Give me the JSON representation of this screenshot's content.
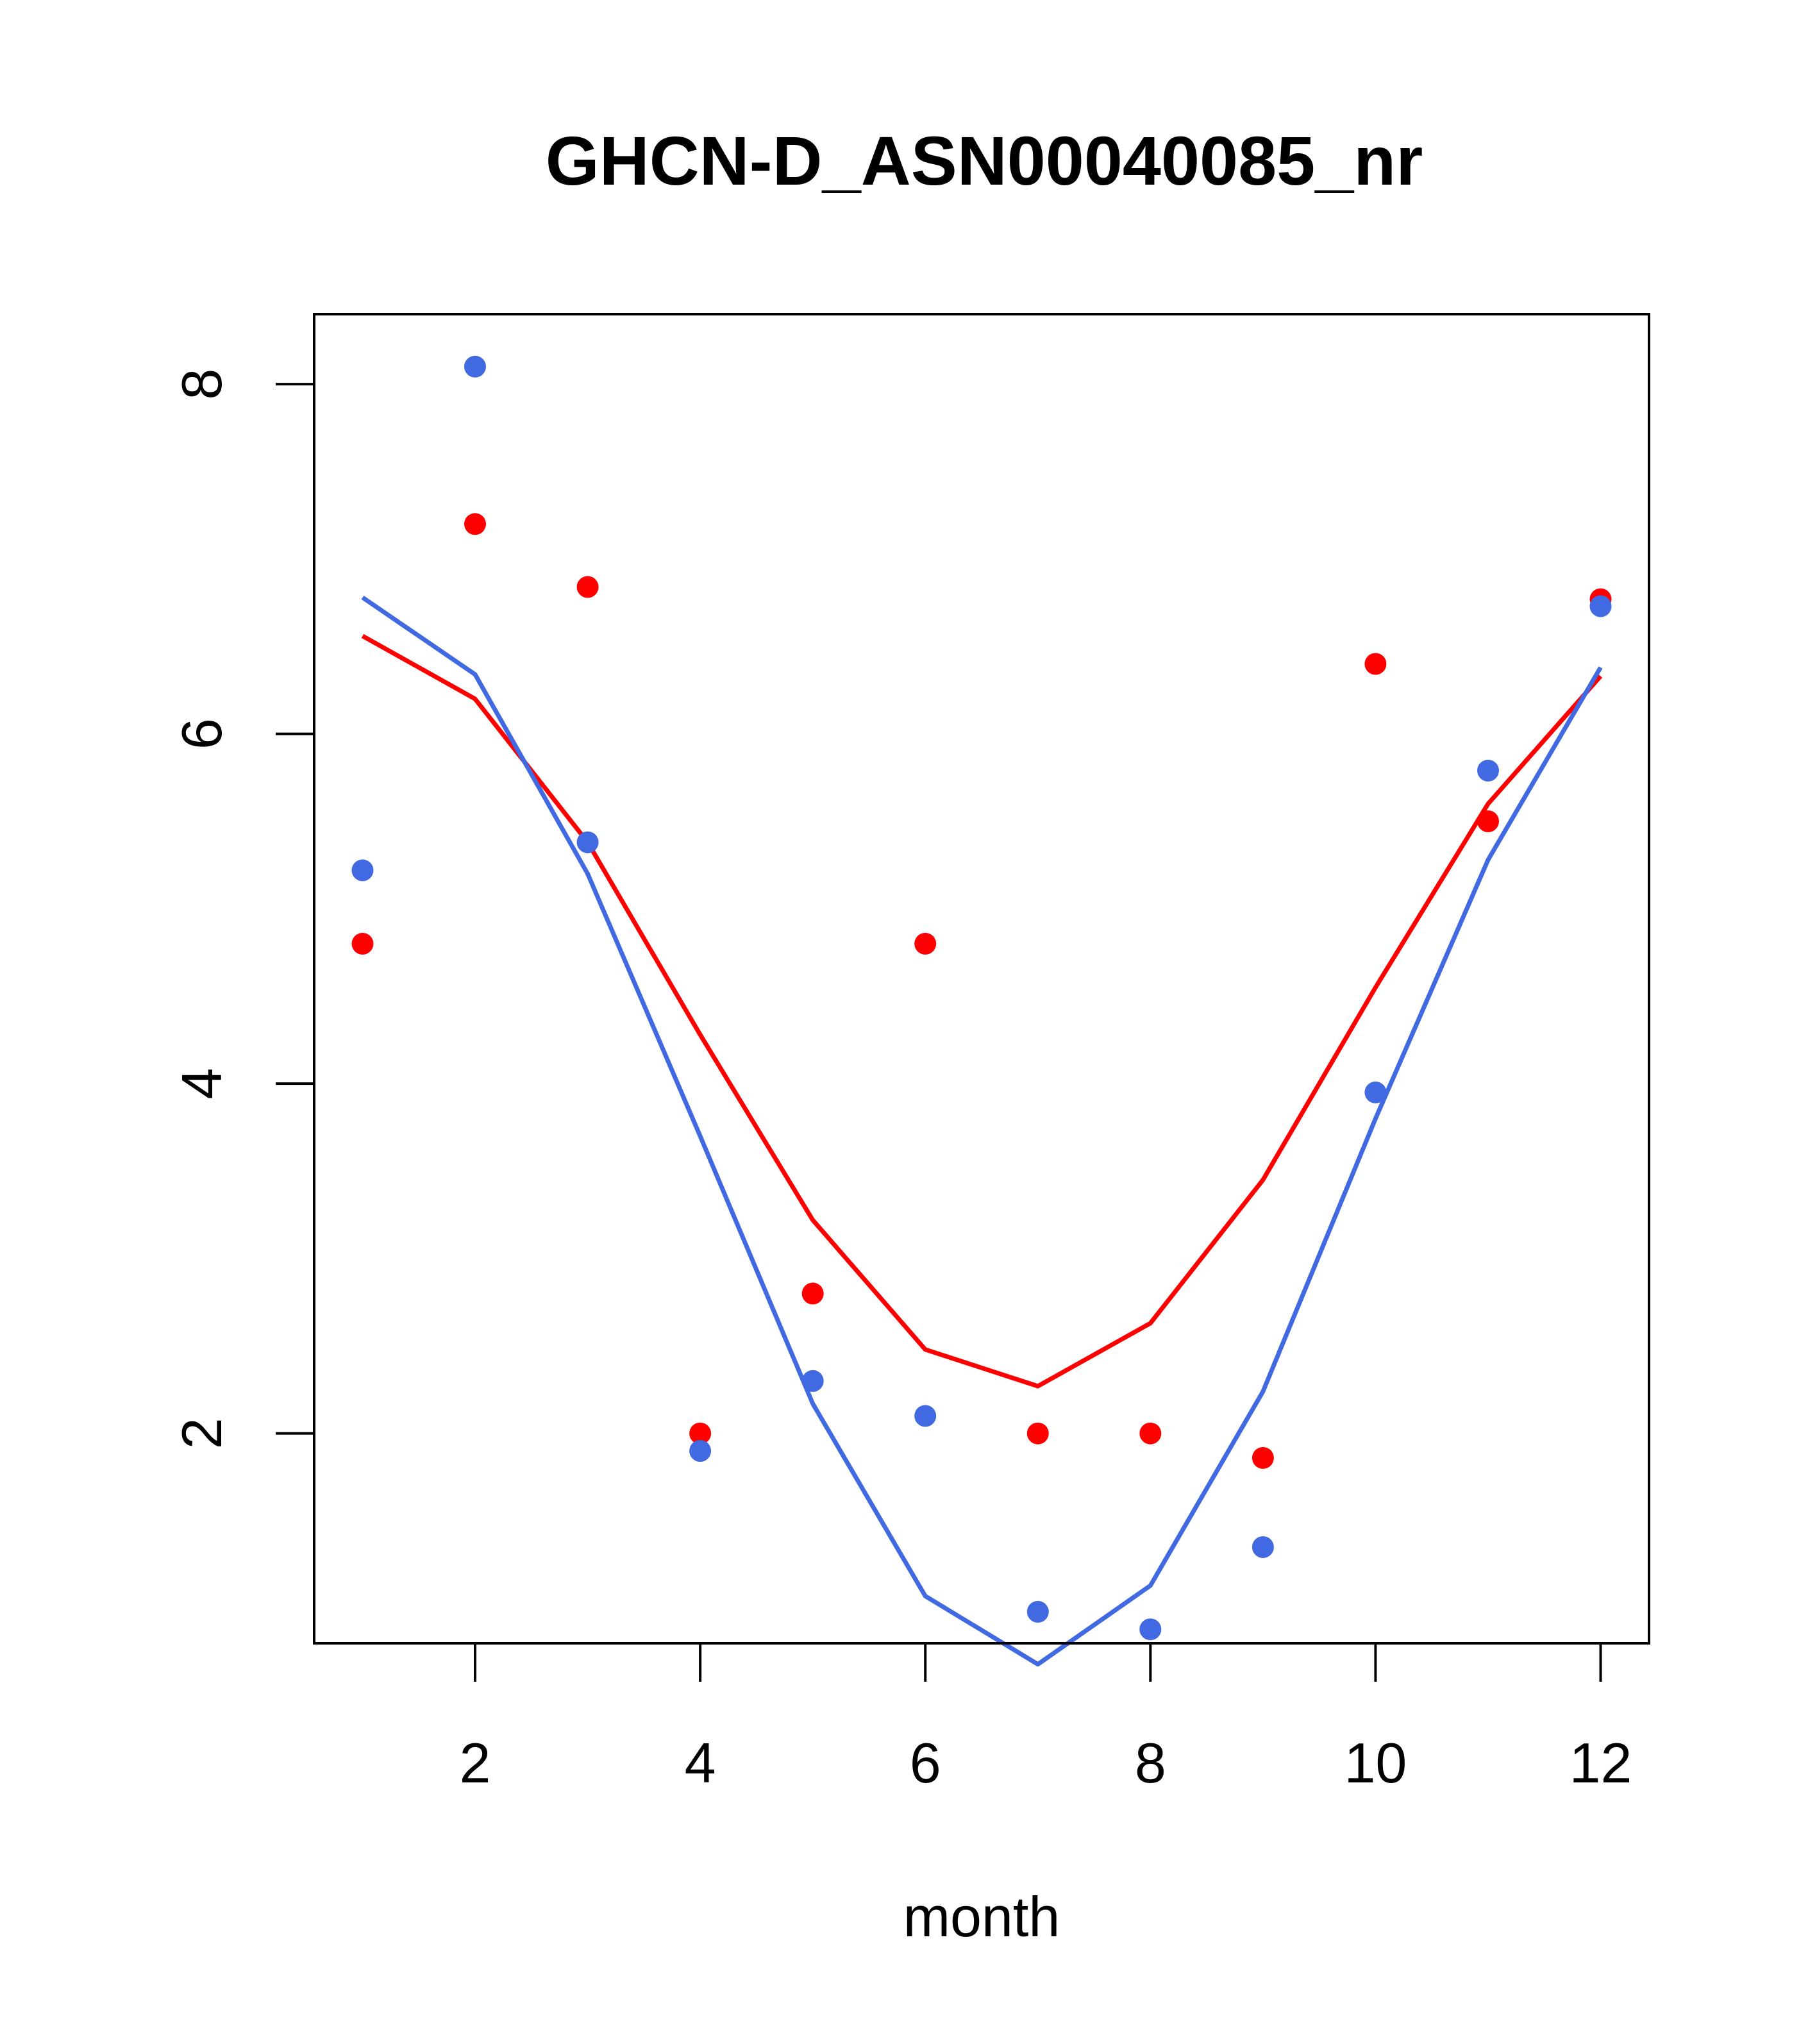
{
  "chart_data": {
    "type": "scatter",
    "title": "GHCN-D_ASN00040085_nr",
    "xlabel": "month",
    "ylabel": "",
    "xlim": [
      0.57,
      12.43
    ],
    "ylim": [
      0.8,
      8.4
    ],
    "x_ticks": [
      2,
      4,
      6,
      8,
      10,
      12
    ],
    "y_ticks": [
      2,
      4,
      6,
      8
    ],
    "grid": false,
    "legend": "none",
    "series": [
      {
        "role": "points",
        "color": "#ff0000",
        "x": [
          1,
          2,
          3,
          4,
          5,
          6,
          7,
          8,
          9,
          10,
          11,
          12
        ],
        "y": [
          4.8,
          7.2,
          6.84,
          2.0,
          2.8,
          4.8,
          2.0,
          2.0,
          1.86,
          6.4,
          5.5,
          6.77
        ]
      },
      {
        "role": "points",
        "color": "#4169e1",
        "x": [
          1,
          2,
          3,
          4,
          5,
          6,
          7,
          8,
          9,
          10,
          11,
          12
        ],
        "y": [
          5.22,
          8.1,
          5.38,
          1.9,
          2.3,
          2.1,
          0.98,
          0.88,
          1.35,
          3.95,
          5.79,
          6.73
        ]
      },
      {
        "role": "line",
        "color": "#ff0000",
        "x": [
          1,
          2,
          3,
          4,
          5,
          6,
          7,
          8,
          9,
          10,
          11,
          12
        ],
        "y": [
          6.56,
          6.2,
          5.38,
          4.28,
          3.22,
          2.48,
          2.27,
          2.63,
          3.45,
          4.55,
          5.6,
          6.33
        ]
      },
      {
        "role": "line",
        "color": "#4169e1",
        "x": [
          1,
          2,
          3,
          4,
          5,
          6,
          7,
          8,
          9,
          10,
          11,
          12
        ],
        "y": [
          6.78,
          6.34,
          5.2,
          3.7,
          2.17,
          1.07,
          0.68,
          1.13,
          2.24,
          3.8,
          5.28,
          6.38
        ]
      }
    ]
  }
}
